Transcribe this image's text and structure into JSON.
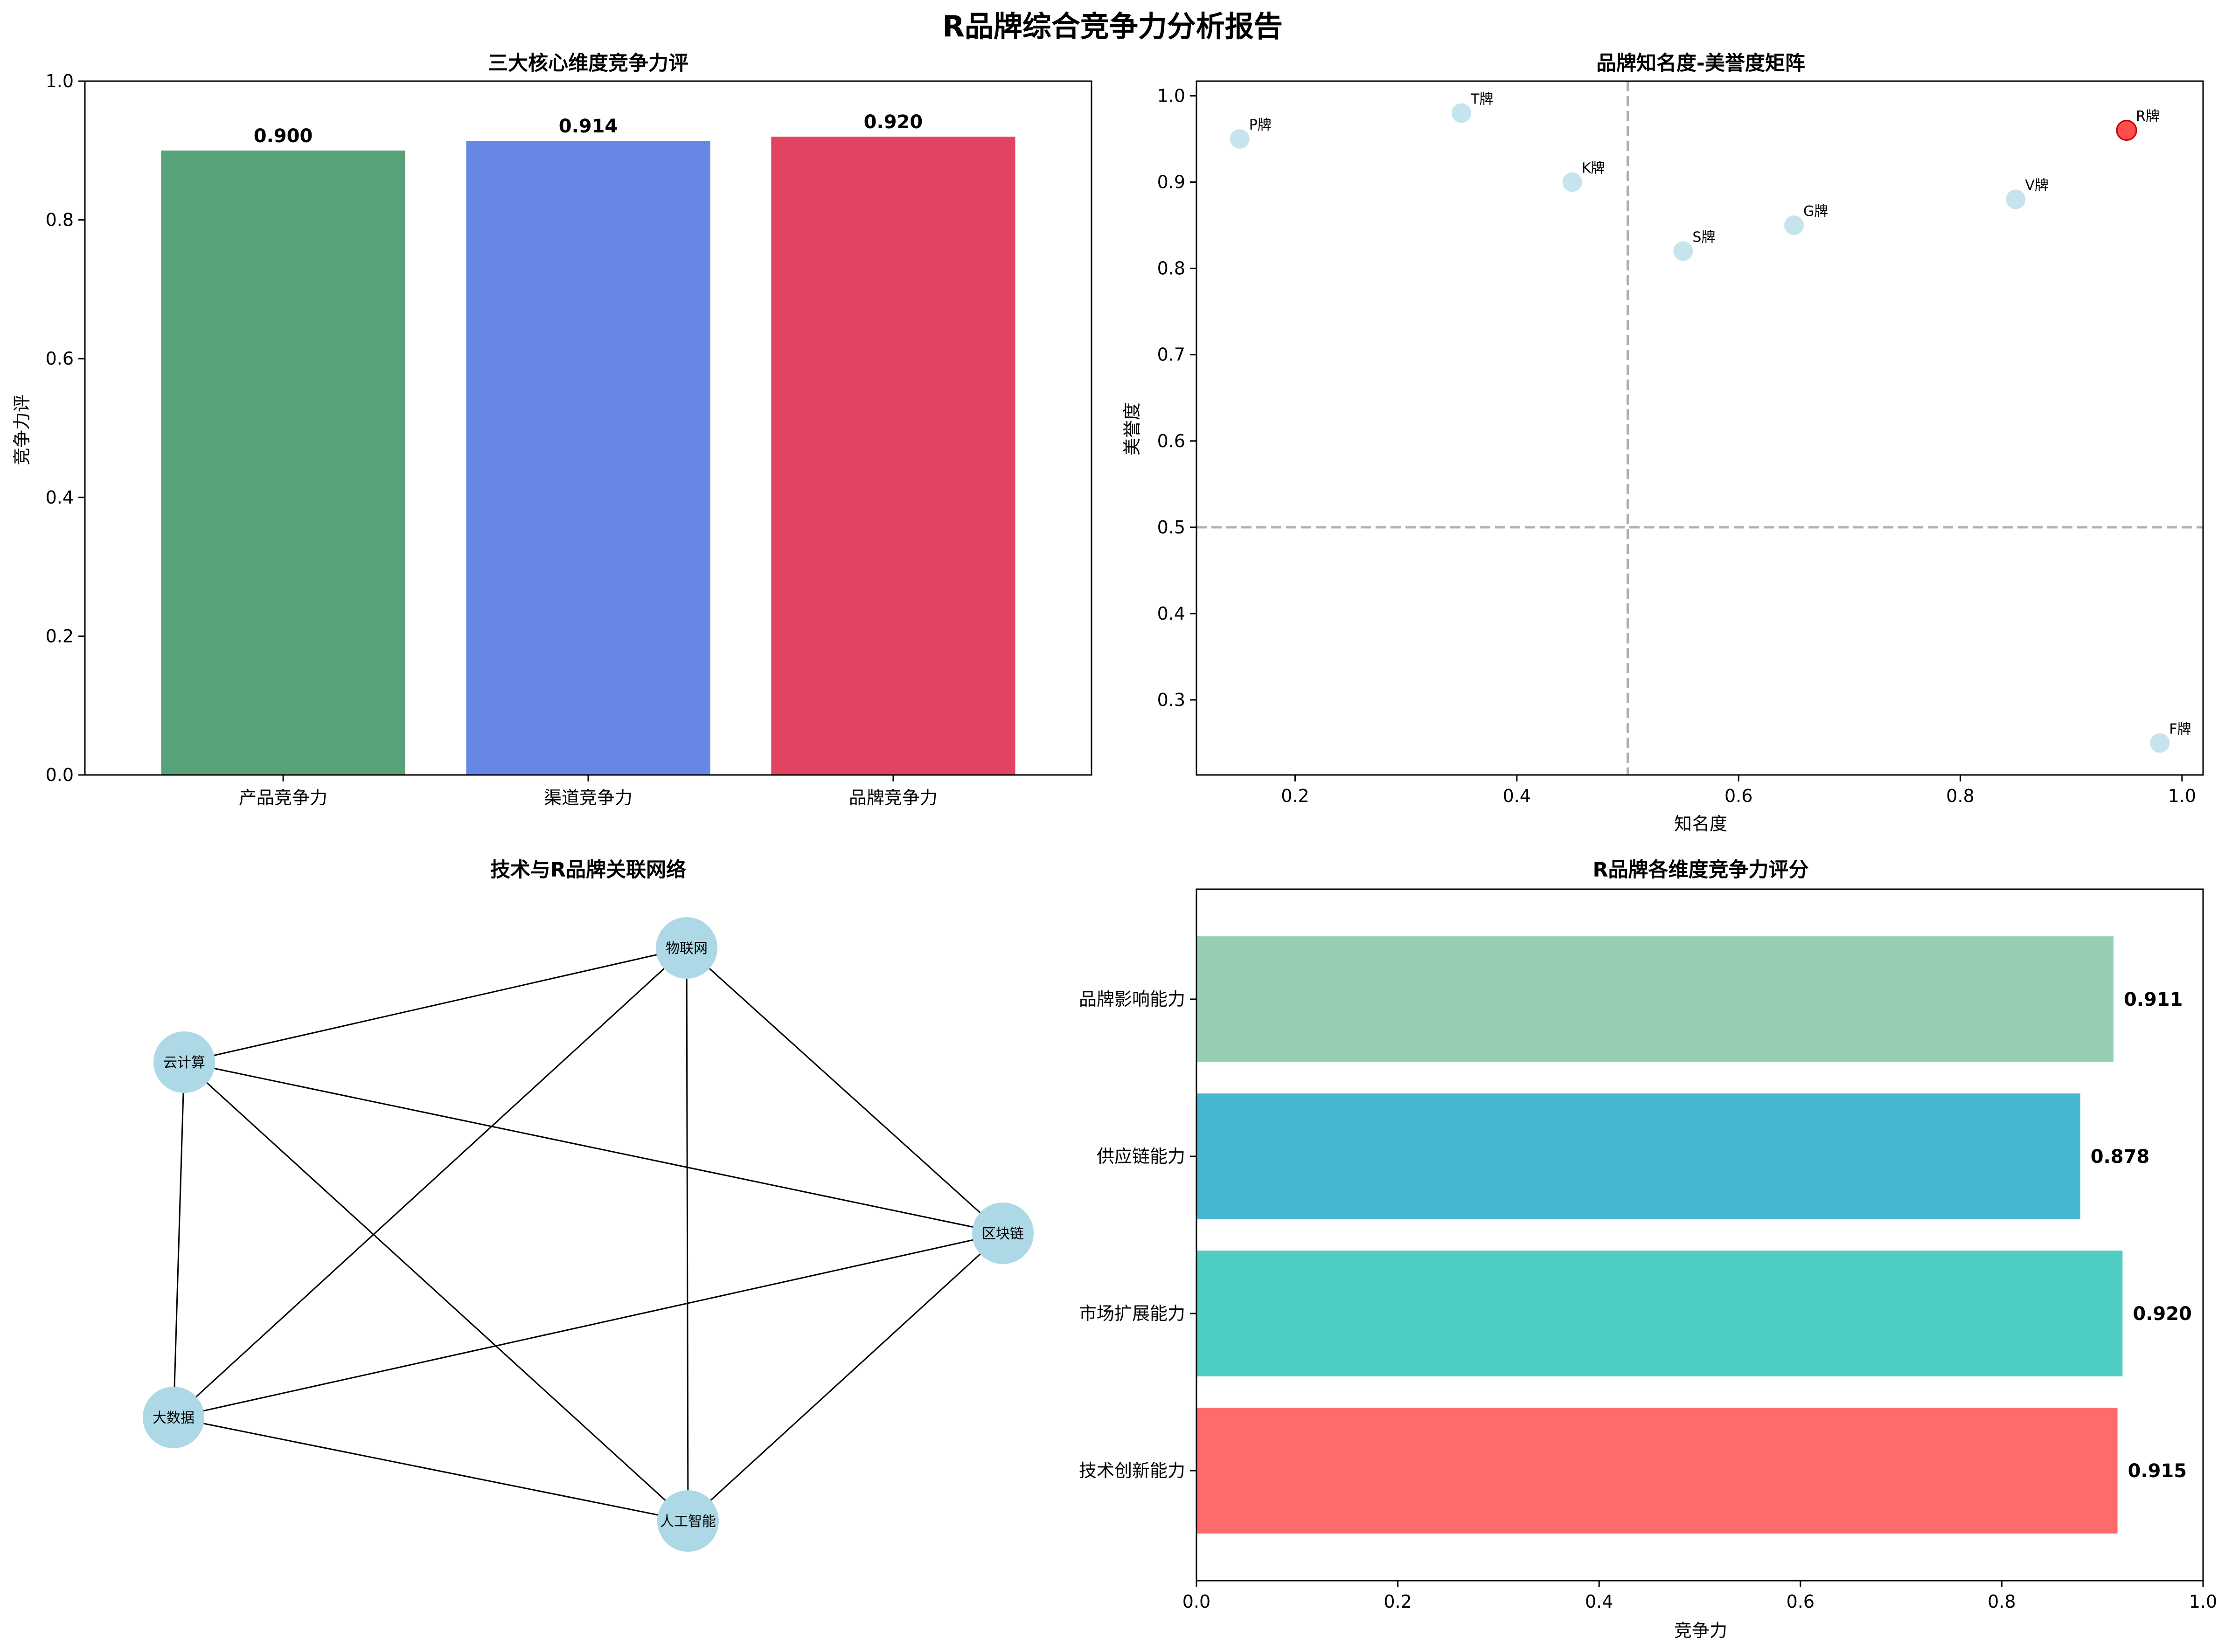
{
  "figure": {
    "title": "R品牌综合竞争力分析报告"
  },
  "chart_data": [
    {
      "id": "bar-top-left",
      "type": "bar",
      "title": "三大核心维度竞争力评",
      "xlabel": "",
      "ylabel": "竞争力评",
      "categories": [
        "产品竞争力",
        "渠道竞争力",
        "品牌竞争力"
      ],
      "values": [
        0.9,
        0.914,
        0.92
      ],
      "value_labels": [
        "0.900",
        "0.914",
        "0.920"
      ],
      "colors": [
        "#2e8b57",
        "#4169e1",
        "#dc143c"
      ],
      "ylim": [
        0,
        1.0
      ],
      "yticks": [
        0.0,
        0.2,
        0.4,
        0.6,
        0.8,
        1.0
      ],
      "ytick_labels": [
        "0.0",
        "0.2",
        "0.4",
        "0.6",
        "0.8",
        "1.0"
      ],
      "grid": false
    },
    {
      "id": "scatter-top-right",
      "type": "scatter",
      "title": "品牌知名度-美誉度矩阵",
      "xlabel": "知名度",
      "ylabel": "美誉度",
      "points": [
        {
          "label": "P牌",
          "x": 0.15,
          "y": 0.95,
          "highlight": false
        },
        {
          "label": "T牌",
          "x": 0.35,
          "y": 0.98,
          "highlight": false
        },
        {
          "label": "K牌",
          "x": 0.45,
          "y": 0.9,
          "highlight": false
        },
        {
          "label": "S牌",
          "x": 0.55,
          "y": 0.82,
          "highlight": false
        },
        {
          "label": "G牌",
          "x": 0.65,
          "y": 0.85,
          "highlight": false
        },
        {
          "label": "V牌",
          "x": 0.85,
          "y": 0.88,
          "highlight": false
        },
        {
          "label": "R牌",
          "x": 0.95,
          "y": 0.96,
          "highlight": true
        },
        {
          "label": "F牌",
          "x": 0.98,
          "y": 0.25,
          "highlight": false
        }
      ],
      "point_color": "#add8e6",
      "highlight_color": "#ff0000",
      "reference_lines": {
        "x": 0.5,
        "y": 0.5
      },
      "xlim": [
        0.111,
        1.019
      ],
      "ylim": [
        0.213,
        1.017
      ],
      "xticks": [
        0.2,
        0.4,
        0.6,
        0.8,
        1.0
      ],
      "xtick_labels": [
        "0.2",
        "0.4",
        "0.6",
        "0.8",
        "1.0"
      ],
      "yticks": [
        0.3,
        0.4,
        0.5,
        0.6,
        0.7,
        0.8,
        0.9,
        1.0
      ],
      "ytick_labels": [
        "0.3",
        "0.4",
        "0.5",
        "0.6",
        "0.7",
        "0.8",
        "0.9",
        "1.0"
      ],
      "grid": false
    },
    {
      "id": "network-bottom-left",
      "type": "network",
      "title": "技术与R品牌关联网络",
      "nodes": [
        {
          "id": "n1",
          "label": "物联网"
        },
        {
          "id": "n2",
          "label": "云计算"
        },
        {
          "id": "n3",
          "label": "区块链"
        },
        {
          "id": "n4",
          "label": "大数据"
        },
        {
          "id": "n5",
          "label": "人工智能"
        }
      ],
      "edges": [
        [
          "n1",
          "n2"
        ],
        [
          "n1",
          "n3"
        ],
        [
          "n1",
          "n4"
        ],
        [
          "n1",
          "n5"
        ],
        [
          "n2",
          "n3"
        ],
        [
          "n2",
          "n4"
        ],
        [
          "n2",
          "n5"
        ],
        [
          "n3",
          "n4"
        ],
        [
          "n3",
          "n5"
        ],
        [
          "n4",
          "n5"
        ]
      ],
      "node_color": "#add8e6",
      "edge_color": "#000000"
    },
    {
      "id": "barh-bottom-right",
      "type": "bar",
      "orientation": "horizontal",
      "title": "R品牌各维度竞争力评分",
      "xlabel": "竞争力",
      "ylabel": "",
      "categories": [
        "技术创新能力",
        "市场扩展能力",
        "供应链能力",
        "品牌影响能力"
      ],
      "values": [
        0.915,
        0.92,
        0.878,
        0.911
      ],
      "value_labels": [
        "0.915",
        "0.920",
        "0.878",
        "0.911"
      ],
      "colors": [
        "#ff6b6b",
        "#4ecdc4",
        "#45b7d1",
        "#96ceb4"
      ],
      "xlim": [
        0,
        1.0
      ],
      "xticks": [
        0.0,
        0.2,
        0.4,
        0.6,
        0.8,
        1.0
      ],
      "xtick_labels": [
        "0.0",
        "0.2",
        "0.4",
        "0.6",
        "0.8",
        "1.0"
      ],
      "grid": false
    }
  ]
}
